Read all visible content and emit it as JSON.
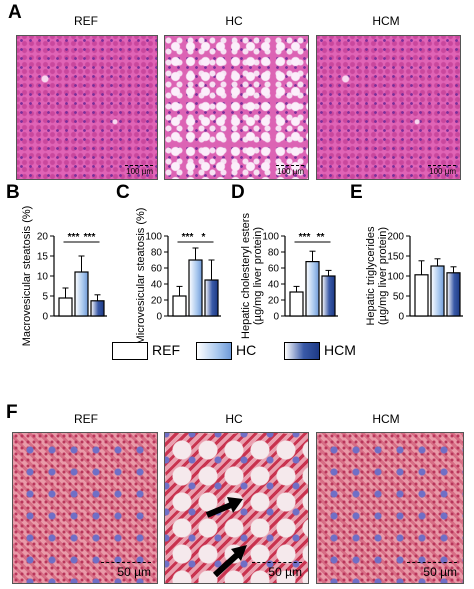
{
  "panels": {
    "A": "A",
    "B": "B",
    "C": "C",
    "D": "D",
    "E": "E",
    "F": "F"
  },
  "top_images": {
    "labels": [
      "REF",
      "HC",
      "HCM"
    ],
    "scale_bar": "100 µm"
  },
  "bottom_images": {
    "labels": [
      "REF",
      "HC",
      "HCM"
    ],
    "scale_bar": "50 µm"
  },
  "legend": {
    "items": [
      {
        "label": "REF",
        "color": "#ffffff"
      },
      {
        "label": "HC",
        "color": "#a9c8ee"
      },
      {
        "label": "HCM",
        "color": "#3a5aa8"
      }
    ]
  },
  "chart_data": [
    {
      "type": "bar",
      "panel": "B",
      "categories": [
        "REF",
        "HC",
        "HCM"
      ],
      "values": [
        4.5,
        11,
        3.8
      ],
      "errors": [
        2.5,
        4,
        1.5
      ],
      "ylabel": "Macrovesicular steatosis (%)",
      "ylim": [
        0,
        20
      ],
      "yticks": [
        "0",
        "5",
        "10",
        "15",
        "20"
      ],
      "significance": [
        "***",
        "***"
      ]
    },
    {
      "type": "bar",
      "panel": "C",
      "categories": [
        "REF",
        "HC",
        "HCM"
      ],
      "values": [
        25,
        70,
        45
      ],
      "errors": [
        12,
        15,
        25
      ],
      "ylabel": "Microvesicular steatosis (%)",
      "ylim": [
        0,
        100
      ],
      "yticks": [
        "0",
        "20",
        "40",
        "60",
        "80",
        "100"
      ],
      "significance": [
        "***",
        "*"
      ]
    },
    {
      "type": "bar",
      "panel": "D",
      "categories": [
        "REF",
        "HC",
        "HCM"
      ],
      "values": [
        30,
        68,
        50
      ],
      "errors": [
        7,
        13,
        7
      ],
      "ylabel": "Hepatic cholesteryl esters (µg/mg liver protein)",
      "ylabel_lines": [
        "Hepatic cholesteryl esters",
        "(µg/mg liver protein)"
      ],
      "ylim": [
        0,
        100
      ],
      "yticks": [
        "0",
        "20",
        "40",
        "60",
        "80",
        "100"
      ],
      "significance": [
        "***",
        "**"
      ]
    },
    {
      "type": "bar",
      "panel": "E",
      "categories": [
        "REF",
        "HC",
        "HCM"
      ],
      "values": [
        103,
        125,
        108
      ],
      "errors": [
        35,
        18,
        15
      ],
      "ylabel": "Hepatic triglycerides (µg/mg liver protein)",
      "ylabel_lines": [
        "Hepatic triglycerides",
        "(µg/mg liver protein)"
      ],
      "ylim": [
        0,
        200
      ],
      "yticks": [
        "0",
        "50",
        "100",
        "150",
        "200"
      ],
      "significance": []
    }
  ]
}
